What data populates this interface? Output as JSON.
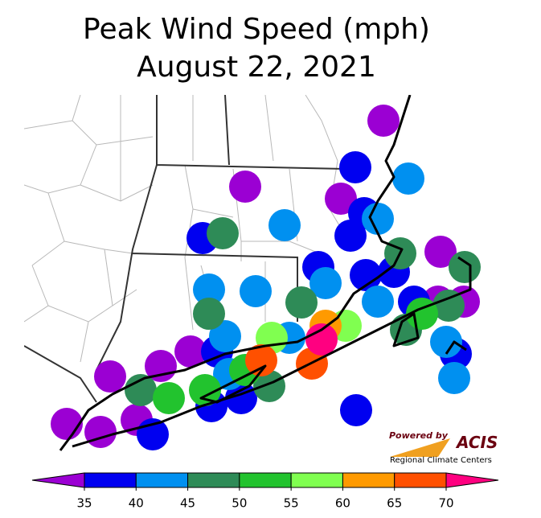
{
  "chart_data": {
    "type": "map",
    "title": "Peak Wind Speed (mph)",
    "subtitle": "August 22, 2021",
    "colorbar": {
      "ticks": [
        35,
        40,
        45,
        50,
        55,
        60,
        65,
        70
      ],
      "colors": [
        "#9b00d3",
        "#0000f0",
        "#0090f0",
        "#2e8b57",
        "#22c32e",
        "#80ff50",
        "#ff9a00",
        "#ff5000",
        "#ff0080"
      ]
    },
    "values": [
      33,
      33,
      33,
      33,
      33,
      33,
      33,
      33,
      33,
      33,
      33,
      33,
      38,
      38,
      38,
      38,
      38,
      38,
      38,
      38,
      38,
      38,
      38,
      38,
      38,
      38,
      43,
      43,
      43,
      43,
      43,
      43,
      43,
      43,
      43,
      43,
      43,
      43,
      48,
      48,
      48,
      48,
      48,
      48,
      48,
      48,
      48,
      53,
      53,
      53,
      53,
      58,
      58,
      63,
      68,
      68,
      72
    ]
  },
  "logo": {
    "powered": "Powered by",
    "name": "ACIS",
    "tagline": "Regional Climate Centers"
  }
}
